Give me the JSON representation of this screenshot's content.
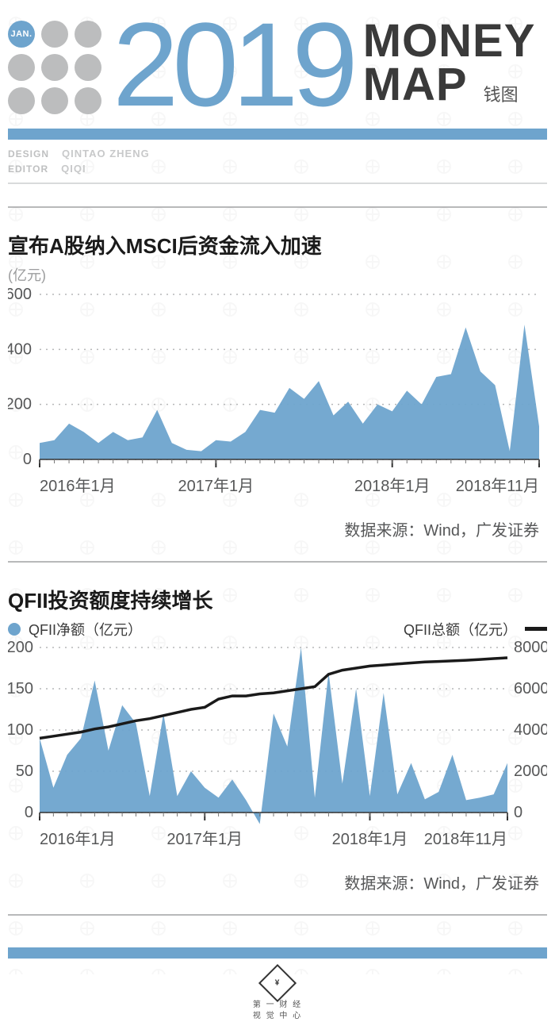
{
  "header": {
    "month_badge": "JAN.",
    "year": "2019",
    "title_line1": "MONEY",
    "title_line2": "MAP",
    "subtitle": "钱图",
    "credits": {
      "design_label": "DESIGN",
      "design_name": "QINTAO ZHENG",
      "editor_label": "EDITOR",
      "editor_name": "QIQI"
    }
  },
  "chart1": {
    "type": "area",
    "title": "宣布A股纳入MSCI后资金流入加速",
    "unit": "(亿元)",
    "source": "数据来源：Wind，广发证券",
    "fill_color": "#6ea4cd",
    "dotted_color": "#b6b7b8",
    "axis_text_color": "#565758",
    "xlim": [
      0,
      34
    ],
    "ylim": [
      0,
      600
    ],
    "ytick_step": 200,
    "yticks": [
      0,
      200,
      400,
      600
    ],
    "xtick_labels": [
      {
        "idx": 0,
        "label": "2016年1月"
      },
      {
        "idx": 12,
        "label": "2017年1月"
      },
      {
        "idx": 24,
        "label": "2018年1月"
      },
      {
        "idx": 34,
        "label": "2018年11月"
      }
    ],
    "values": [
      60,
      70,
      130,
      100,
      60,
      100,
      70,
      80,
      180,
      60,
      35,
      30,
      70,
      65,
      100,
      180,
      170,
      260,
      220,
      285,
      160,
      210,
      130,
      200,
      175,
      250,
      200,
      300,
      310,
      480,
      320,
      270,
      30,
      490,
      120
    ],
    "axis_fontsize": 20
  },
  "chart2": {
    "type": "area+line",
    "title": "QFII投资额度持续增长",
    "legend_area": "QFII净额（亿元）",
    "legend_line": "QFII总额（亿元）",
    "source": "数据来源：Wind，广发证券",
    "fill_color": "#6ea4cd",
    "line_color": "#1a1a1a",
    "line_width": 3.5,
    "dotted_color": "#b6b7b8",
    "axis_text_color": "#565758",
    "xlim": [
      0,
      34
    ],
    "ylim_left": [
      0,
      200
    ],
    "ylim_right": [
      0,
      8000
    ],
    "ytick_step_left": 50,
    "ytick_step_right": 2000,
    "yticks_left": [
      0,
      50,
      100,
      150,
      200
    ],
    "yticks_right": [
      0,
      2000,
      4000,
      6000,
      8000
    ],
    "xtick_labels": [
      {
        "idx": 0,
        "label": "2016年1月"
      },
      {
        "idx": 12,
        "label": "2017年1月"
      },
      {
        "idx": 24,
        "label": "2018年1月"
      },
      {
        "idx": 34,
        "label": "2018年11月"
      }
    ],
    "area_values": [
      90,
      30,
      70,
      90,
      160,
      75,
      130,
      108,
      20,
      120,
      20,
      50,
      30,
      18,
      40,
      15,
      -14,
      120,
      80,
      200,
      18,
      170,
      35,
      150,
      20,
      145,
      22,
      60,
      16,
      25,
      70,
      15,
      18,
      22,
      60
    ],
    "line_values": [
      3600,
      3700,
      3800,
      3900,
      4050,
      4150,
      4300,
      4450,
      4550,
      4700,
      4850,
      5000,
      5100,
      5500,
      5650,
      5650,
      5750,
      5800,
      5900,
      6000,
      6100,
      6700,
      6900,
      7000,
      7100,
      7150,
      7200,
      7250,
      7300,
      7320,
      7350,
      7380,
      7420,
      7460,
      7500
    ],
    "axis_fontsize": 20
  },
  "footer": {
    "logo_text": "第一财经\n视觉中心"
  },
  "colors": {
    "brand_blue": "#6ea4cd",
    "gray_dot": "#bcbdbe",
    "text_dark": "#1a1a1a",
    "text_mid": "#565758",
    "text_light": "#bfc0c1"
  }
}
